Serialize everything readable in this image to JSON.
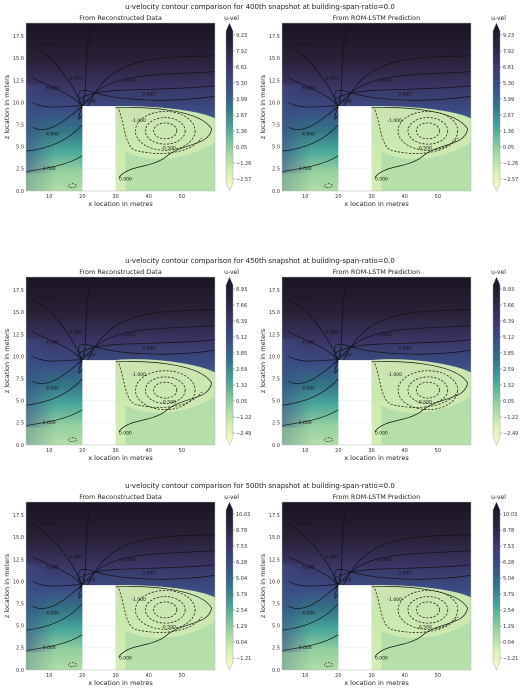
{
  "figure": {
    "rows": [
      {
        "title": "u-velocity contour comparison for 400th snapshot at building-span-ratio=0.0",
        "colorbar_title": "u-vel",
        "colorbar_ticks": [
          "9.23",
          "7.92",
          "6.61",
          "5.30",
          "3.99",
          "2.67",
          "1.36",
          "0.05",
          "−1.26",
          "−2.57"
        ],
        "panels": [
          {
            "title": "From Reconstructed Data",
            "variant": "recon"
          },
          {
            "title": "From ROM-LSTM Prediction",
            "variant": "pred"
          }
        ]
      },
      {
        "title": "u-velocity contour comparison for 450th snapshot at building-span-ratio=0.0",
        "colorbar_title": "u-vel",
        "colorbar_ticks": [
          "8.93",
          "7.66",
          "6.39",
          "5.12",
          "3.85",
          "2.59",
          "1.32",
          "0.05",
          "−1.22",
          "−2.49"
        ],
        "panels": [
          {
            "title": "From Reconstructed Data",
            "variant": "recon"
          },
          {
            "title": "From ROM-LSTM Prediction",
            "variant": "pred"
          }
        ]
      },
      {
        "title": "u-velocity contour comparison for 500th snapshot at building-span-ratio=0.0",
        "colorbar_title": "u-vel",
        "colorbar_ticks": [
          "10.03",
          "8.78",
          "7.53",
          "6.28",
          "5.04",
          "3.79",
          "2.54",
          "1.29",
          "0.04",
          "−1.21"
        ],
        "panels": [
          {
            "title": "From Reconstructed Data",
            "variant": "recon"
          },
          {
            "title": "From ROM-LSTM Prediction",
            "variant": "pred"
          }
        ]
      }
    ]
  },
  "chart_data": {
    "type": "heatmap",
    "xlabel": "x location in metres",
    "ylabel": "z location in meters",
    "xticks": [
      10,
      20,
      30,
      40,
      50
    ],
    "yticks": [
      "0.0",
      "2.5",
      "5.0",
      "7.5",
      "10.0",
      "12.5",
      "15.0",
      "17.5"
    ],
    "xlim": [
      3,
      60
    ],
    "ylim": [
      0,
      19
    ],
    "building": {
      "x": [
        20,
        30
      ],
      "z": [
        0,
        9.6
      ]
    },
    "colormap": [
      "#fbfdcf",
      "#d4edb2",
      "#94cf9f",
      "#4aa79a",
      "#337487",
      "#3a4d84",
      "#3b3566",
      "#2a2137",
      "#1c1324"
    ],
    "contour_labels": [
      "8.000",
      "6.000",
      "4.000",
      "2.000",
      "0.000",
      "-1.000",
      "-0.500"
    ]
  }
}
